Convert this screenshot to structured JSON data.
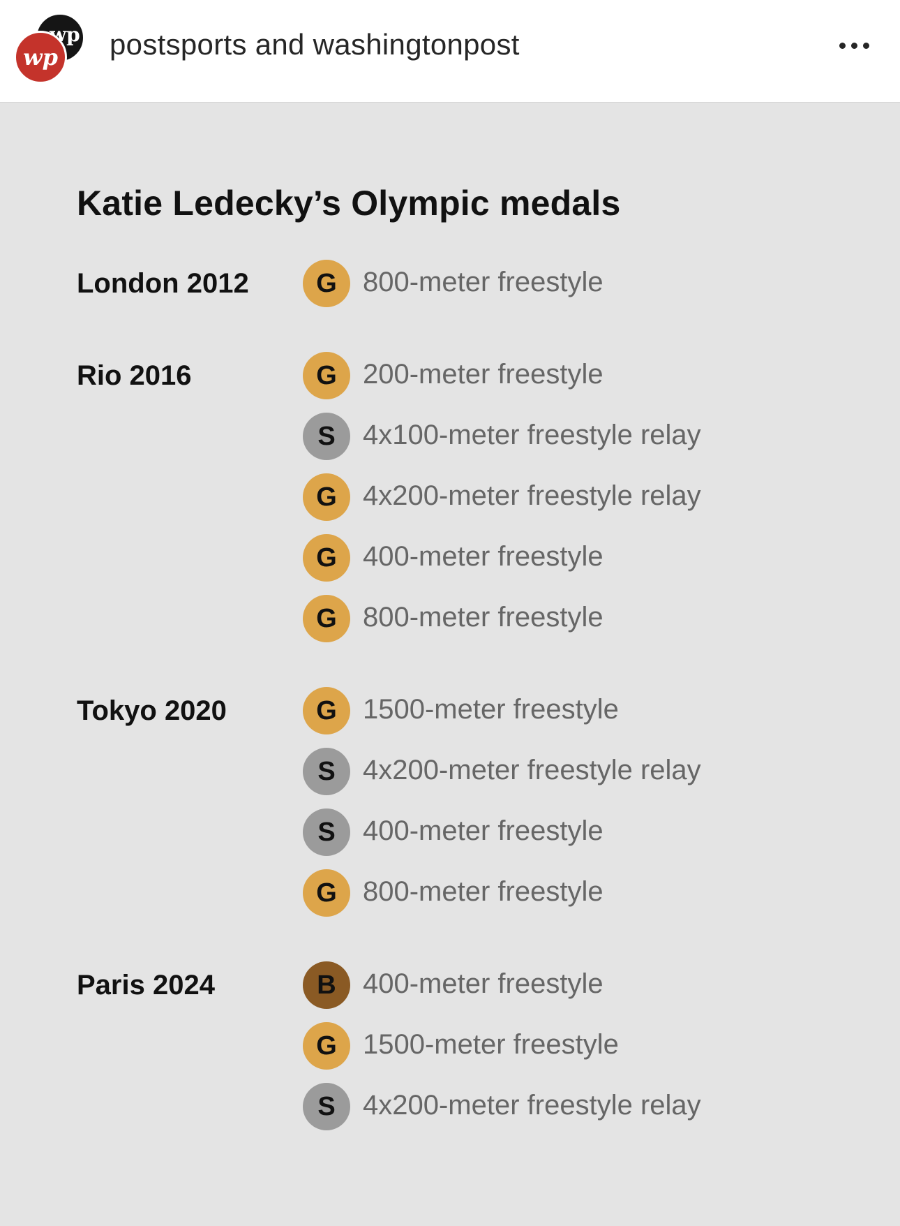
{
  "header": {
    "account_name": "postsports and washingtonpost",
    "logo_back_text": "wp",
    "logo_front_text": "wp"
  },
  "graphic": {
    "title": "Katie Ledecky’s Olympic medals",
    "games": [
      {
        "label": "London 2012",
        "medals": [
          {
            "type": "G",
            "event": "800-meter freestyle"
          }
        ]
      },
      {
        "label": "Rio 2016",
        "medals": [
          {
            "type": "G",
            "event": "200-meter freestyle"
          },
          {
            "type": "S",
            "event": "4x100-meter freestyle relay"
          },
          {
            "type": "G",
            "event": "4x200-meter freestyle relay"
          },
          {
            "type": "G",
            "event": "400-meter freestyle"
          },
          {
            "type": "G",
            "event": "800-meter freestyle"
          }
        ]
      },
      {
        "label": "Tokyo 2020",
        "medals": [
          {
            "type": "G",
            "event": "1500-meter freestyle"
          },
          {
            "type": "S",
            "event": "4x200-meter freestyle relay"
          },
          {
            "type": "S",
            "event": "400-meter freestyle"
          },
          {
            "type": "G",
            "event": "800-meter freestyle"
          }
        ]
      },
      {
        "label": "Paris 2024",
        "medals": [
          {
            "type": "B",
            "event": "400-meter freestyle"
          },
          {
            "type": "G",
            "event": "1500-meter freestyle"
          },
          {
            "type": "S",
            "event": "4x200-meter freestyle relay"
          }
        ]
      }
    ]
  },
  "colors": {
    "gold": "#dda54a",
    "silver": "#9b9b9b",
    "bronze": "#8a5a24",
    "background": "#e4e4e4"
  }
}
